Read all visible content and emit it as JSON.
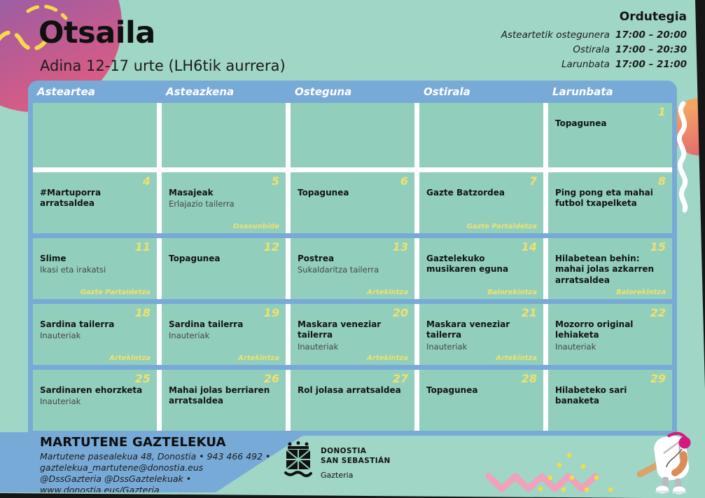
{
  "title": "Otsaila",
  "subtitle": "Adina 12-17 urte  (LH6tik aurrera)",
  "schedule": {
    "title": "Ordutegia",
    "rows": [
      {
        "label": "Asteartetik ostegunera",
        "time": "17:00 – 20:00"
      },
      {
        "label": "Ostirala",
        "time": "17:00 – 20:30"
      },
      {
        "label": "Larunbata",
        "time": "17:00 – 21:00"
      }
    ]
  },
  "calendar": {
    "day_headers": [
      "Asteartea",
      "Asteazkena",
      "Osteguna",
      "Ostirala",
      "Larunbata"
    ],
    "weeks": [
      [
        {
          "day": "",
          "title": "",
          "subtitle": "",
          "tag": ""
        },
        {
          "day": "",
          "title": "",
          "subtitle": "",
          "tag": ""
        },
        {
          "day": "",
          "title": "",
          "subtitle": "",
          "tag": ""
        },
        {
          "day": "",
          "title": "",
          "subtitle": "",
          "tag": ""
        },
        {
          "day": "1",
          "title": "Topagunea",
          "subtitle": "",
          "tag": ""
        }
      ],
      [
        {
          "day": "4",
          "title": "#Martuporra arratsaldea",
          "subtitle": "",
          "tag": ""
        },
        {
          "day": "5",
          "title": "Masajeak",
          "subtitle": "Erlajazio tailerra",
          "tag": "Osasunbide"
        },
        {
          "day": "6",
          "title": "Topagunea",
          "subtitle": "",
          "tag": ""
        },
        {
          "day": "7",
          "title": "Gazte Batzordea",
          "subtitle": "",
          "tag": "Gazte Partaidetza"
        },
        {
          "day": "8",
          "title": "Ping pong eta mahai futbol txapelketa",
          "subtitle": "",
          "tag": ""
        }
      ],
      [
        {
          "day": "11",
          "title": "Slime",
          "subtitle": "Ikasi eta irakatsi",
          "tag": "Gazte Partaidetza"
        },
        {
          "day": "12",
          "title": "Topagunea",
          "subtitle": "",
          "tag": ""
        },
        {
          "day": "13",
          "title": "Postrea",
          "subtitle": "Sukaldaritza tailerra",
          "tag": "Artekintza"
        },
        {
          "day": "14",
          "title": "Gaztelekuko musikaren eguna",
          "subtitle": "",
          "tag": "Balorekintza"
        },
        {
          "day": "15",
          "title": "Hilabetean behin: mahai jolas azkarren arratsaldea",
          "subtitle": "",
          "tag": "Balorekintza"
        }
      ],
      [
        {
          "day": "18",
          "title": "Sardina tailerra",
          "subtitle": "Inauteriak",
          "tag": "Artekintza"
        },
        {
          "day": "19",
          "title": "Sardina tailerra",
          "subtitle": "Inauteriak",
          "tag": "Artekintza"
        },
        {
          "day": "20",
          "title": "Maskara veneziar tailerra",
          "subtitle": "Inauteriak",
          "tag": "Artekintza"
        },
        {
          "day": "21",
          "title": "Maskara veneziar tailerra",
          "subtitle": "Inauteriak",
          "tag": "Artekintza"
        },
        {
          "day": "22",
          "title": "Mozorro original lehiaketa",
          "subtitle": "Inauteriak",
          "tag": ""
        }
      ],
      [
        {
          "day": "25",
          "title": "Sardinaren ehorzketa",
          "subtitle": "Inauteriak",
          "tag": ""
        },
        {
          "day": "26",
          "title": "Mahai jolas berriaren arratsaldea",
          "subtitle": "",
          "tag": ""
        },
        {
          "day": "27",
          "title": "Rol jolasa arratsaldea",
          "subtitle": "",
          "tag": ""
        },
        {
          "day": "28",
          "title": "Topagunea",
          "subtitle": "",
          "tag": ""
        },
        {
          "day": "29",
          "title": "Hilabeteko sari banaketa",
          "subtitle": "",
          "tag": ""
        }
      ]
    ]
  },
  "footer": {
    "name": "MARTUTENE GAZTELEKUA",
    "address_line": "Martutene pasealekua 48, Donostia  •  943 466 492  •",
    "email_line": "gaztelekua_martutene@donostia.eus",
    "social_line": "@DssGazteria  @DssGaztelekuak  •",
    "web_line": "www.donostia.eus/Gazteria",
    "logo": {
      "city_line1": "DONOSTIA",
      "city_line2": "SAN SEBASTIÁN",
      "dept": "Gazteria"
    }
  },
  "colors": {
    "page_background": "#A0D6C6",
    "cell_background": "#91CFBC",
    "grid_blue": "#78AAD7",
    "accent_yellow": "#F0E06E",
    "zigzag_pink": "#EFA2B9",
    "dot_yellow": "#F6DC3D",
    "headphone_magenta": "#D6197F",
    "blob_gradient": [
      "#7A6BB5",
      "#DB5C83"
    ],
    "orange_circle": "#EE8A66",
    "edge_dark": "#161616"
  }
}
